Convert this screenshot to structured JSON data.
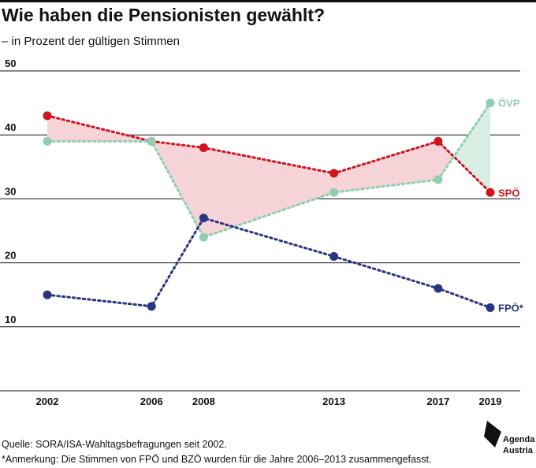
{
  "header": {
    "title": "Wie haben die Pensionisten gewählt?",
    "subtitle": "– in Prozent der gültigen Stimmen"
  },
  "footer": {
    "source": "Quelle: SORA/ISA-Wahltagsbefragungen seit 2002.",
    "note": "*Anmerkung: Die Stimmen von FPÖ und BZÖ wurden für die Jahre 2006–2013 zusammengefasst."
  },
  "logo": {
    "line1": "Agenda",
    "line2": "Austria"
  },
  "colors": {
    "spo": "#d0131e",
    "ovp": "#8fceb0",
    "fpo": "#2a3580",
    "fill_spo_leads": "#f6d3d6",
    "fill_ovp_leads": "#d9efe3",
    "gridline": "#111111"
  },
  "chart_data": {
    "type": "line",
    "x": [
      2002,
      2006,
      2008,
      2013,
      2017,
      2019
    ],
    "x_tick_labels": [
      "2002",
      "2006",
      "2008",
      "2013",
      "2017",
      "2019"
    ],
    "y_ticks": [
      10,
      20,
      30,
      40,
      50
    ],
    "ylim": [
      0,
      50
    ],
    "grid": true,
    "series": [
      {
        "key": "spo",
        "name": "SPÖ",
        "values": [
          43,
          39,
          38,
          34,
          39,
          31
        ]
      },
      {
        "key": "ovp",
        "name": "ÖVP",
        "values": [
          39,
          39,
          24,
          31,
          33,
          45
        ]
      },
      {
        "key": "fpo",
        "name": "FPÖ*",
        "values": [
          15,
          13.2,
          27,
          21,
          16,
          13
        ]
      }
    ]
  }
}
